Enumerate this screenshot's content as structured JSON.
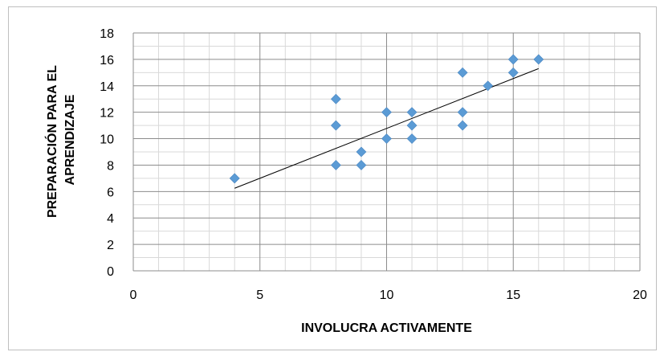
{
  "chart_data": {
    "type": "scatter",
    "title": "",
    "xlabel": "INVOLUCRA ACTIVAMENTE",
    "ylabel_lines": [
      "PREPARACIÓN PARA EL",
      "APRENDIZAJE"
    ],
    "xlim": [
      0,
      20
    ],
    "ylim": [
      0,
      18
    ],
    "x_ticks": [
      0,
      5,
      10,
      15,
      20
    ],
    "y_ticks": [
      0,
      2,
      4,
      6,
      8,
      10,
      12,
      14,
      16,
      18
    ],
    "x_minor_step": 1,
    "y_minor_step": 1,
    "grid": true,
    "legend": "none",
    "points": [
      {
        "x": 4,
        "y": 7
      },
      {
        "x": 8,
        "y": 13
      },
      {
        "x": 8,
        "y": 11
      },
      {
        "x": 8,
        "y": 8
      },
      {
        "x": 9,
        "y": 9
      },
      {
        "x": 9,
        "y": 8
      },
      {
        "x": 10,
        "y": 12
      },
      {
        "x": 10,
        "y": 10
      },
      {
        "x": 11,
        "y": 12
      },
      {
        "x": 11,
        "y": 11
      },
      {
        "x": 11,
        "y": 10
      },
      {
        "x": 13,
        "y": 15
      },
      {
        "x": 13,
        "y": 12
      },
      {
        "x": 13,
        "y": 11
      },
      {
        "x": 14,
        "y": 14
      },
      {
        "x": 15,
        "y": 16
      },
      {
        "x": 15,
        "y": 15
      },
      {
        "x": 16,
        "y": 16
      }
    ],
    "trendline": {
      "x": [
        4,
        16
      ],
      "y": [
        6.25,
        15.3
      ]
    },
    "colors": {
      "marker": "#5b9bd5",
      "trendline": "#000000",
      "major_grid": "#8c8c8c",
      "minor_grid": "#d9d9d9"
    }
  }
}
